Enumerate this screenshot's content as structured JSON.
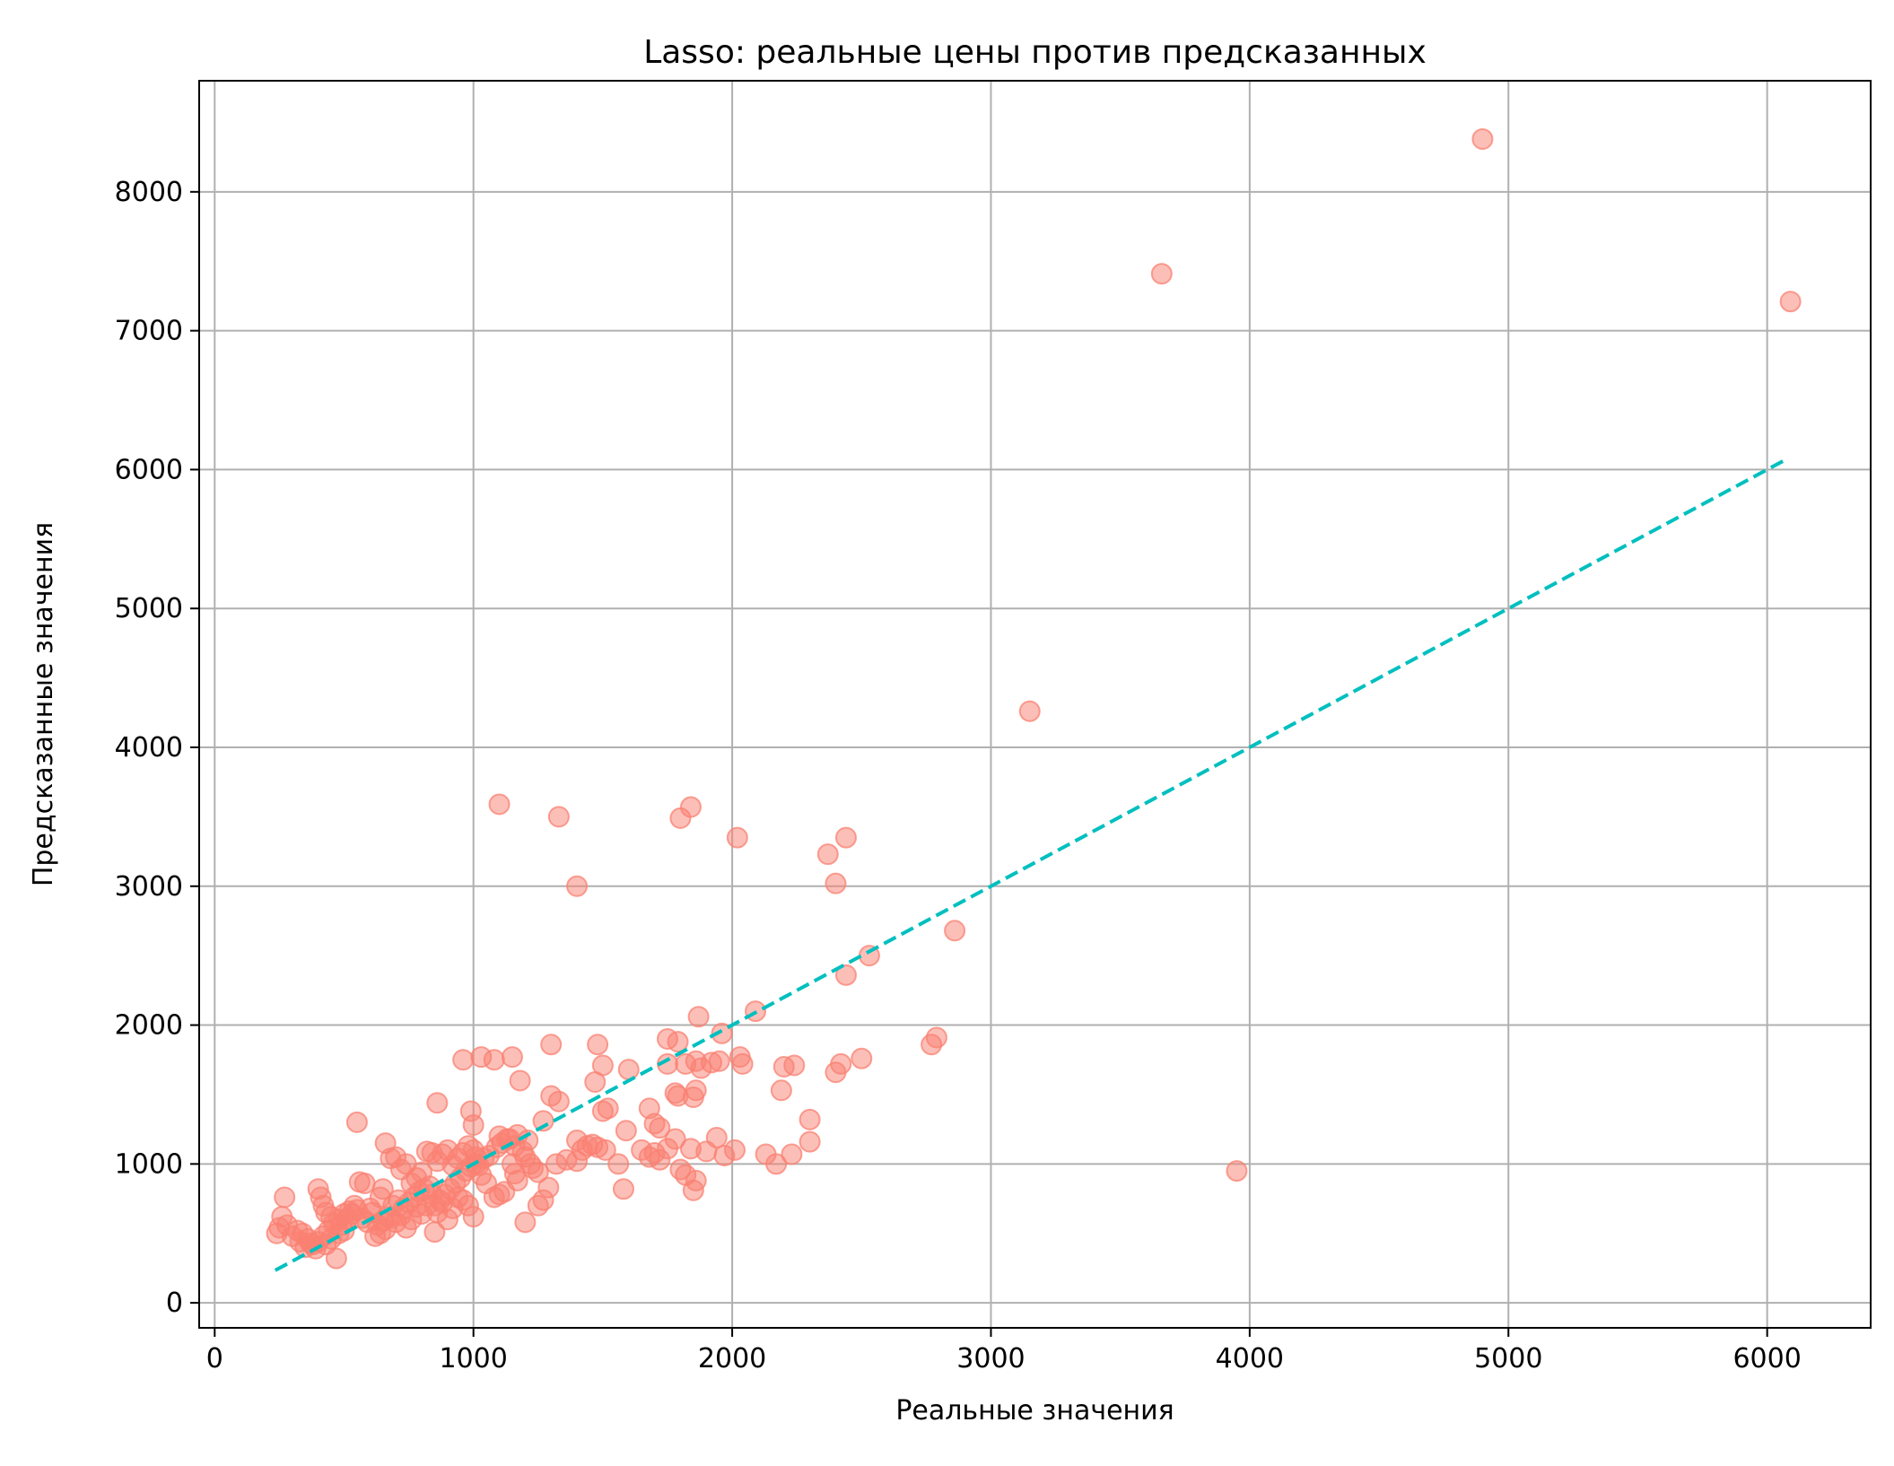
{
  "chart_data": {
    "type": "scatter",
    "title": "Lasso: реальные цены против предсказанных",
    "xlabel": "Реальные значения",
    "ylabel": "Предсказанные значения",
    "xlim": [
      -60,
      6400
    ],
    "ylim": [
      -180,
      8800
    ],
    "xticks": [
      0,
      1000,
      2000,
      3000,
      4000,
      5000,
      6000
    ],
    "yticks": [
      0,
      1000,
      2000,
      3000,
      4000,
      5000,
      6000,
      7000,
      8000
    ],
    "grid": true,
    "colors": {
      "points": "#fa8072",
      "reference_line": "#00bfbf",
      "grid": "#b0b0b0",
      "axes": "#000000"
    },
    "reference_line": {
      "style": "dashed",
      "x": [
        234,
        6070
      ],
      "y": [
        234,
        6070
      ]
    },
    "points": [
      [
        4900,
        8380
      ],
      [
        3660,
        7410
      ],
      [
        6090,
        7210
      ],
      [
        3150,
        4260
      ],
      [
        1100,
        3590
      ],
      [
        1330,
        3500
      ],
      [
        1400,
        3000
      ],
      [
        1800,
        3490
      ],
      [
        1840,
        3570
      ],
      [
        2020,
        3350
      ],
      [
        2370,
        3230
      ],
      [
        2440,
        3350
      ],
      [
        2400,
        3020
      ],
      [
        2860,
        2680
      ],
      [
        2530,
        2500
      ],
      [
        2440,
        2360
      ],
      [
        2790,
        1910
      ],
      [
        2770,
        1860
      ],
      [
        2500,
        1760
      ],
      [
        2420,
        1720
      ],
      [
        2400,
        1660
      ],
      [
        2240,
        1710
      ],
      [
        2200,
        1700
      ],
      [
        2190,
        1530
      ],
      [
        2090,
        2100
      ],
      [
        1960,
        1940
      ],
      [
        1870,
        2060
      ],
      [
        2030,
        1770
      ],
      [
        2040,
        1720
      ],
      [
        1950,
        1740
      ],
      [
        1920,
        1730
      ],
      [
        1880,
        1690
      ],
      [
        1860,
        1740
      ],
      [
        1820,
        1720
      ],
      [
        1790,
        1880
      ],
      [
        1750,
        1900
      ],
      [
        1750,
        1720
      ],
      [
        1780,
        1510
      ],
      [
        1790,
        1490
      ],
      [
        1850,
        1480
      ],
      [
        1860,
        1530
      ],
      [
        1480,
        1860
      ],
      [
        1470,
        1590
      ],
      [
        1500,
        1710
      ],
      [
        1600,
        1680
      ],
      [
        1300,
        1860
      ],
      [
        1300,
        1490
      ],
      [
        1330,
        1450
      ],
      [
        1270,
        1310
      ],
      [
        1180,
        1600
      ],
      [
        1150,
        1770
      ],
      [
        1080,
        1750
      ],
      [
        1030,
        1770
      ],
      [
        960,
        1750
      ],
      [
        860,
        1440
      ],
      [
        550,
        1300
      ],
      [
        660,
        1150
      ],
      [
        990,
        1380
      ],
      [
        1000,
        1280
      ],
      [
        1500,
        1380
      ],
      [
        1520,
        1400
      ],
      [
        1680,
        1400
      ],
      [
        1700,
        1290
      ],
      [
        1720,
        1260
      ],
      [
        1590,
        1240
      ],
      [
        1400,
        1170
      ],
      [
        1460,
        1140
      ],
      [
        1480,
        1120
      ],
      [
        1510,
        1100
      ],
      [
        1560,
        1000
      ],
      [
        1580,
        820
      ],
      [
        1940,
        1190
      ],
      [
        1970,
        1060
      ],
      [
        2010,
        1100
      ],
      [
        2130,
        1070
      ],
      [
        2170,
        1000
      ],
      [
        2230,
        1070
      ],
      [
        2300,
        1160
      ],
      [
        2300,
        1320
      ],
      [
        3950,
        950
      ],
      [
        1650,
        1100
      ],
      [
        1680,
        1050
      ],
      [
        1700,
        1080
      ],
      [
        1720,
        1030
      ],
      [
        1750,
        1110
      ],
      [
        1780,
        1180
      ],
      [
        1800,
        960
      ],
      [
        1820,
        920
      ],
      [
        1840,
        1110
      ],
      [
        1850,
        810
      ],
      [
        1860,
        880
      ],
      [
        1900,
        1090
      ],
      [
        1100,
        1200
      ],
      [
        1130,
        1180
      ],
      [
        1160,
        1130
      ],
      [
        1190,
        1090
      ],
      [
        1200,
        1050
      ],
      [
        1220,
        1000
      ],
      [
        1230,
        970
      ],
      [
        1250,
        940
      ],
      [
        1150,
        1000
      ],
      [
        1160,
        930
      ],
      [
        1170,
        880
      ],
      [
        1200,
        580
      ],
      [
        1250,
        700
      ],
      [
        1270,
        740
      ],
      [
        1290,
        830
      ],
      [
        1320,
        1000
      ],
      [
        1360,
        1030
      ],
      [
        1400,
        1020
      ],
      [
        1420,
        1100
      ],
      [
        1440,
        1130
      ],
      [
        1120,
        800
      ],
      [
        1100,
        780
      ],
      [
        1080,
        760
      ],
      [
        1050,
        860
      ],
      [
        1000,
        1100
      ],
      [
        1010,
        1050
      ],
      [
        1020,
        990
      ],
      [
        1030,
        920
      ],
      [
        980,
        1130
      ],
      [
        960,
        1080
      ],
      [
        940,
        1040
      ],
      [
        920,
        990
      ],
      [
        900,
        1100
      ],
      [
        880,
        1070
      ],
      [
        860,
        1020
      ],
      [
        840,
        1080
      ],
      [
        820,
        1090
      ],
      [
        800,
        940
      ],
      [
        780,
        900
      ],
      [
        760,
        860
      ],
      [
        740,
        1000
      ],
      [
        720,
        960
      ],
      [
        700,
        1050
      ],
      [
        680,
        1040
      ],
      [
        1000,
        620
      ],
      [
        980,
        700
      ],
      [
        960,
        740
      ],
      [
        940,
        760
      ],
      [
        920,
        680
      ],
      [
        900,
        600
      ],
      [
        880,
        720
      ],
      [
        860,
        650
      ],
      [
        850,
        510
      ],
      [
        840,
        780
      ],
      [
        820,
        700
      ],
      [
        800,
        640
      ],
      [
        780,
        690
      ],
      [
        760,
        600
      ],
      [
        740,
        540
      ],
      [
        720,
        630
      ],
      [
        700,
        580
      ],
      [
        680,
        610
      ],
      [
        660,
        530
      ],
      [
        640,
        500
      ],
      [
        620,
        480
      ],
      [
        640,
        760
      ],
      [
        650,
        820
      ],
      [
        600,
        680
      ],
      [
        580,
        860
      ],
      [
        560,
        870
      ],
      [
        540,
        700
      ],
      [
        520,
        660
      ],
      [
        500,
        640
      ],
      [
        480,
        600
      ],
      [
        460,
        570
      ],
      [
        440,
        520
      ],
      [
        420,
        480
      ],
      [
        400,
        440
      ],
      [
        380,
        420
      ],
      [
        360,
        460
      ],
      [
        340,
        500
      ],
      [
        320,
        520
      ],
      [
        300,
        480
      ],
      [
        280,
        560
      ],
      [
        260,
        620
      ],
      [
        250,
        540
      ],
      [
        240,
        500
      ],
      [
        270,
        760
      ],
      [
        400,
        820
      ],
      [
        410,
        760
      ],
      [
        420,
        700
      ],
      [
        430,
        650
      ],
      [
        450,
        620
      ],
      [
        470,
        320
      ],
      [
        490,
        560
      ],
      [
        510,
        600
      ],
      [
        530,
        640
      ],
      [
        550,
        670
      ],
      [
        570,
        610
      ],
      [
        590,
        580
      ],
      [
        610,
        650
      ],
      [
        630,
        560
      ],
      [
        650,
        590
      ],
      [
        670,
        620
      ],
      [
        690,
        700
      ],
      [
        710,
        740
      ],
      [
        730,
        680
      ],
      [
        750,
        720
      ],
      [
        770,
        760
      ],
      [
        790,
        800
      ],
      [
        810,
        820
      ],
      [
        830,
        840
      ],
      [
        850,
        700
      ],
      [
        870,
        740
      ],
      [
        890,
        780
      ],
      [
        910,
        820
      ],
      [
        930,
        860
      ],
      [
        950,
        900
      ],
      [
        970,
        950
      ],
      [
        990,
        980
      ],
      [
        1010,
        1000
      ],
      [
        1040,
        1040
      ],
      [
        1060,
        1060
      ],
      [
        1090,
        1120
      ],
      [
        1110,
        1150
      ],
      [
        1140,
        1180
      ],
      [
        1170,
        1210
      ],
      [
        1210,
        1170
      ],
      [
        330,
        440
      ],
      [
        350,
        400
      ],
      [
        370,
        430
      ],
      [
        390,
        390
      ],
      [
        430,
        420
      ],
      [
        450,
        460
      ],
      [
        480,
        500
      ],
      [
        500,
        520
      ]
    ]
  }
}
